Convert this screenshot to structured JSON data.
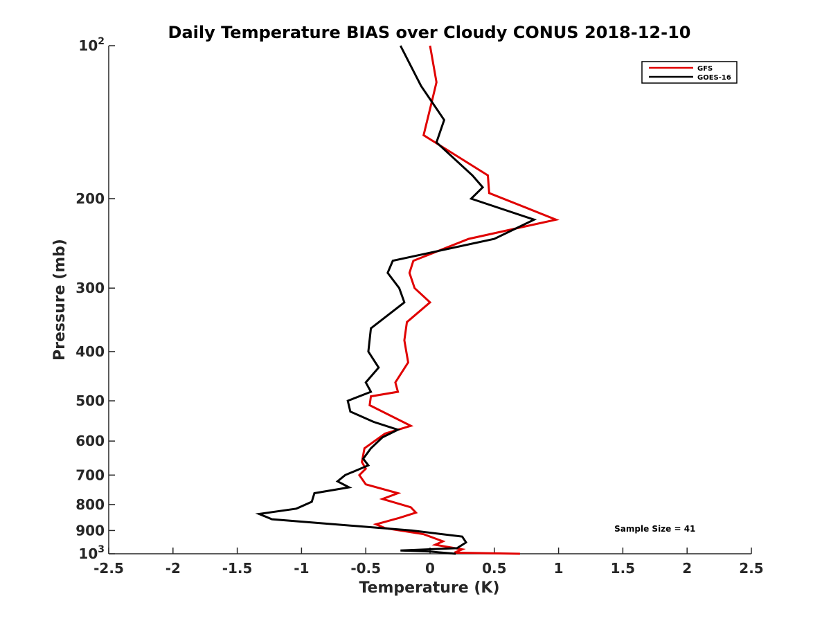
{
  "chart_data": {
    "type": "line",
    "title": "Daily Temperature BIAS over Cloudy CONUS 2018-12-10",
    "xlabel": "Temperature (K)",
    "ylabel": "Pressure (mb)",
    "xlim": [
      -2.5,
      2.5
    ],
    "ylim": [
      100,
      1000
    ],
    "y_scale": "log",
    "y_reversed": true,
    "xticks": [
      {
        "value": -2.5,
        "label": "-2.5"
      },
      {
        "value": -2,
        "label": "-2"
      },
      {
        "value": -1.5,
        "label": "-1.5"
      },
      {
        "value": -1,
        "label": "-1"
      },
      {
        "value": -0.5,
        "label": "-0.5"
      },
      {
        "value": 0,
        "label": "0"
      },
      {
        "value": 0.5,
        "label": "0.5"
      },
      {
        "value": 1,
        "label": "1"
      },
      {
        "value": 1.5,
        "label": "1.5"
      },
      {
        "value": 2,
        "label": "2"
      },
      {
        "value": 2.5,
        "label": "2.5"
      }
    ],
    "yticks": [
      {
        "value": 100,
        "label": "10",
        "sup": "2"
      },
      {
        "value": 200,
        "label": "200"
      },
      {
        "value": 300,
        "label": "300"
      },
      {
        "value": 400,
        "label": "400"
      },
      {
        "value": 500,
        "label": "500"
      },
      {
        "value": 600,
        "label": "600"
      },
      {
        "value": 700,
        "label": "700"
      },
      {
        "value": 800,
        "label": "800"
      },
      {
        "value": 900,
        "label": "900"
      },
      {
        "value": 1000,
        "label": "10",
        "sup": "3"
      }
    ],
    "grid": false,
    "legend_position": "top-right",
    "series": [
      {
        "name": "GFS",
        "color": "#e00000",
        "x": [
          0.0,
          0.05,
          0.01,
          -0.05,
          0.45,
          0.46,
          0.98,
          0.3,
          -0.13,
          -0.16,
          -0.12,
          0.0,
          -0.18,
          -0.2,
          -0.17,
          -0.27,
          -0.25,
          -0.46,
          -0.47,
          -0.15,
          -0.35,
          -0.51,
          -0.53,
          -0.5,
          -0.55,
          -0.5,
          -0.25,
          -0.37,
          -0.15,
          -0.11,
          -0.24,
          -0.42,
          -0.35,
          -0.05,
          0.1,
          0.04,
          0.25,
          0.19,
          0.7
        ],
        "y": [
          100,
          118,
          130,
          150,
          180,
          195,
          220,
          240,
          265,
          280,
          300,
          320,
          350,
          380,
          420,
          460,
          480,
          490,
          510,
          560,
          580,
          620,
          660,
          680,
          700,
          730,
          760,
          780,
          810,
          830,
          850,
          875,
          890,
          915,
          945,
          960,
          980,
          995,
          1000
        ]
      },
      {
        "name": "GOES-16",
        "color": "#000000",
        "x": [
          -0.23,
          -0.07,
          0.11,
          0.05,
          0.33,
          0.41,
          0.32,
          0.81,
          0.5,
          -0.29,
          -0.33,
          -0.24,
          -0.2,
          -0.46,
          -0.48,
          -0.4,
          -0.5,
          -0.46,
          -0.64,
          -0.62,
          -0.44,
          -0.25,
          -0.37,
          -0.46,
          -0.52,
          -0.48,
          -0.66,
          -0.72,
          -0.63,
          -0.9,
          -0.92,
          -1.04,
          -1.33,
          -1.23,
          -0.14,
          0.25,
          0.28,
          0.21,
          -0.23,
          0.0,
          0.2
        ],
        "y": [
          100,
          120,
          140,
          155,
          180,
          190,
          200,
          220,
          240,
          265,
          280,
          300,
          320,
          360,
          400,
          430,
          460,
          480,
          500,
          525,
          550,
          570,
          590,
          620,
          650,
          670,
          700,
          720,
          740,
          760,
          790,
          815,
          835,
          855,
          900,
          925,
          950,
          975,
          985,
          990,
          1000
        ]
      }
    ],
    "annotations": [
      {
        "text": "Sample Size = 41",
        "x": 1.75,
        "y": 905
      }
    ]
  }
}
